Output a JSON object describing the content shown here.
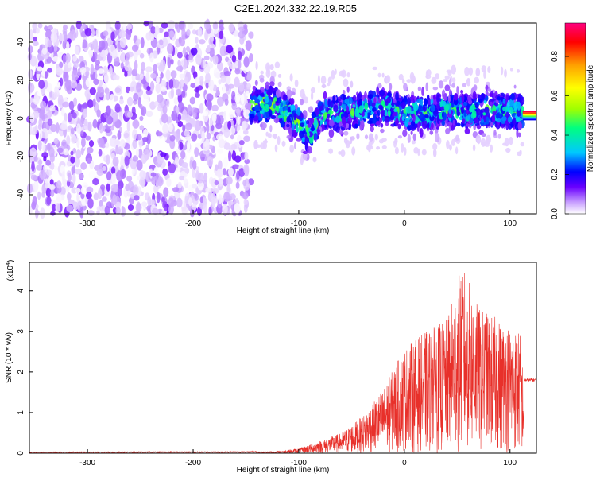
{
  "title": "C2E1.2024.332.22.19.R05",
  "chart_data": [
    {
      "type": "heatmap",
      "name": "spectrogram",
      "xlabel": "Height of straight line (km)",
      "ylabel": "Frequency (Hz)",
      "xlim": [
        -355,
        125
      ],
      "ylim": [
        -50,
        50
      ],
      "xticks": [
        -300,
        -200,
        -100,
        0,
        100
      ],
      "yticks": [
        -40,
        -20,
        0,
        20,
        40
      ],
      "colorbar": {
        "label": "Normalized spectral amplitude",
        "range": [
          0,
          0.97
        ],
        "ticks": [
          0.0,
          0.2,
          0.4,
          0.6,
          0.8
        ],
        "colors": [
          "#ffffff",
          "#c8a0ff",
          "#6a00ff",
          "#0000ff",
          "#00c8ff",
          "#00ff80",
          "#a0ff00",
          "#ffff00",
          "#ffa000",
          "#ff0000",
          "#ff0080"
        ]
      },
      "regions": [
        {
          "x": [
            -355,
            -145
          ],
          "y": [
            -50,
            50
          ],
          "level": 0.08,
          "description_level": "low noise"
        },
        {
          "x": [
            -145,
            112
          ],
          "y": [
            -22,
            25
          ],
          "level": 0.2
        },
        {
          "x": [
            112,
            125
          ],
          "y": [
            -1,
            4
          ],
          "level": 0.9
        }
      ],
      "ridge": [
        {
          "x": -145,
          "y": 6
        },
        {
          "x": -130,
          "y": 8
        },
        {
          "x": -120,
          "y": 6
        },
        {
          "x": -110,
          "y": 2
        },
        {
          "x": -100,
          "y": -2
        },
        {
          "x": -90,
          "y": -10
        },
        {
          "x": -85,
          "y": -4
        },
        {
          "x": -80,
          "y": 2
        },
        {
          "x": -60,
          "y": 3
        },
        {
          "x": -40,
          "y": 4
        },
        {
          "x": -20,
          "y": 6
        },
        {
          "x": 0,
          "y": 3
        },
        {
          "x": 20,
          "y": 3
        },
        {
          "x": 40,
          "y": 5
        },
        {
          "x": 60,
          "y": 3
        },
        {
          "x": 80,
          "y": 5
        },
        {
          "x": 100,
          "y": 4
        },
        {
          "x": 112,
          "y": 3
        },
        {
          "x": 125,
          "y": 2
        }
      ]
    },
    {
      "type": "line",
      "name": "snr",
      "xlabel": "Height of straight line (km)",
      "ylabel": "SNR (10 * v/v)",
      "y_multiplier_label": "(x10",
      "y_multiplier_exp": "4",
      "y_multiplier_close": ")",
      "xlim": [
        -355,
        125
      ],
      "ylim": [
        0,
        4.7
      ],
      "xticks": [
        -300,
        -200,
        -100,
        0,
        100
      ],
      "yticks": [
        0,
        1,
        2,
        3,
        4
      ],
      "color": "#e8302a",
      "envelope": [
        {
          "x": -355,
          "y": 0.02
        },
        {
          "x": -150,
          "y": 0.03
        },
        {
          "x": -120,
          "y": 0.05
        },
        {
          "x": -100,
          "y": 0.12
        },
        {
          "x": -80,
          "y": 0.3
        },
        {
          "x": -60,
          "y": 0.5
        },
        {
          "x": -40,
          "y": 0.9
        },
        {
          "x": -20,
          "y": 1.6
        },
        {
          "x": 0,
          "y": 2.6
        },
        {
          "x": 20,
          "y": 3.0
        },
        {
          "x": 40,
          "y": 3.3
        },
        {
          "x": 55,
          "y": 4.7
        },
        {
          "x": 70,
          "y": 3.6
        },
        {
          "x": 90,
          "y": 3.3
        },
        {
          "x": 110,
          "y": 3.0
        },
        {
          "x": 113,
          "y": 1.8
        },
        {
          "x": 125,
          "y": 1.8
        }
      ],
      "tail_level": 1.8
    }
  ]
}
